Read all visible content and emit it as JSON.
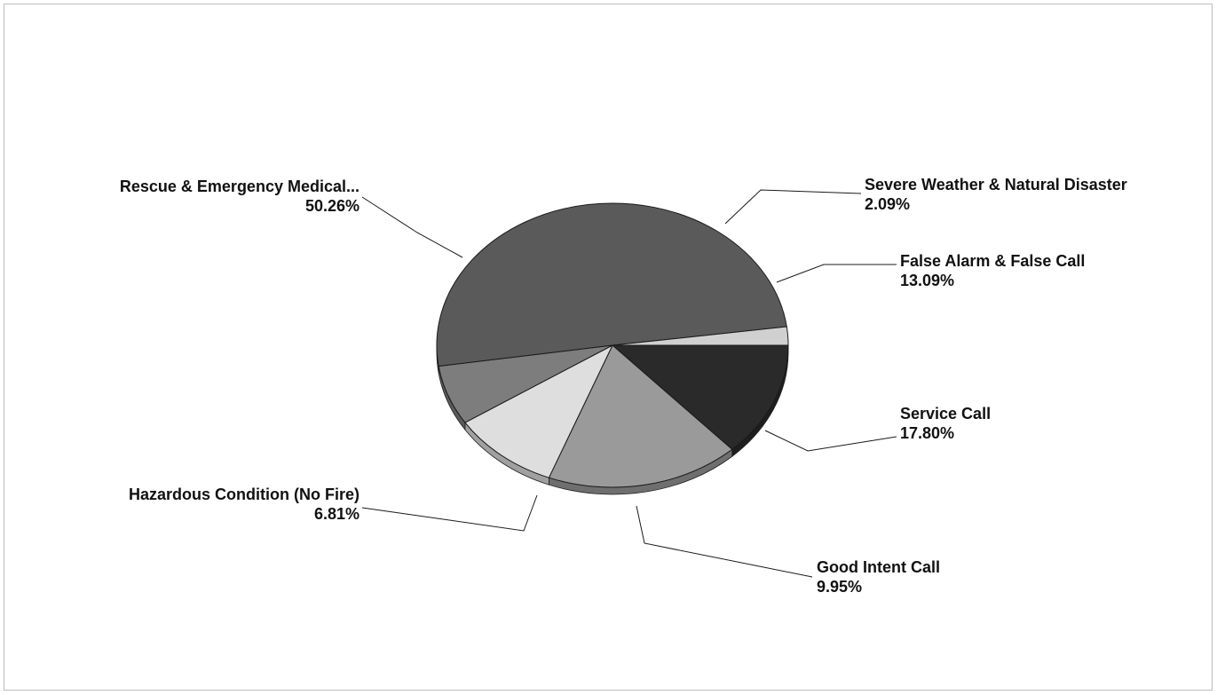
{
  "chart_data": {
    "type": "pie",
    "title": "",
    "slices": [
      {
        "label": "False Alarm & False Call",
        "value": 13.09,
        "pct_label": "13.09%",
        "color": "#2a2a2a"
      },
      {
        "label": "Service Call",
        "value": 17.8,
        "pct_label": "17.80%",
        "color": "#9a9a9a"
      },
      {
        "label": "Good Intent Call",
        "value": 9.95,
        "pct_label": "9.95%",
        "color": "#dedede"
      },
      {
        "label": "Hazardous Condition (No Fire)",
        "value": 6.81,
        "pct_label": "6.81%",
        "color": "#7d7d7d"
      },
      {
        "label": "Rescue & Emergency Medical...",
        "value": 50.26,
        "pct_label": "50.26%",
        "color": "#5a5a5a"
      },
      {
        "label": "Severe Weather & Natural Disaster",
        "value": 2.09,
        "pct_label": "2.09%",
        "color": "#d0d0d0"
      }
    ],
    "legend": "none",
    "style": "3d-pie"
  }
}
